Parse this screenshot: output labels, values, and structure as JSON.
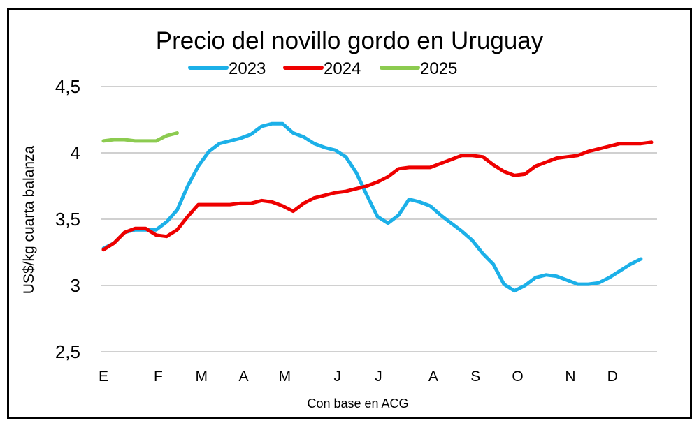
{
  "chart_data": {
    "type": "line",
    "title": "Precio del novillo gordo en Uruguay",
    "ylabel": "US$/kg cuarta balanza",
    "xlabel": "Con base en ACG",
    "ylim": [
      2.5,
      4.5
    ],
    "yticks": [
      "4,5",
      "4",
      "3,5",
      "3",
      "2,5"
    ],
    "ytick_values": [
      4.5,
      4,
      3.5,
      3,
      2.5
    ],
    "grid": true,
    "legend_position": "top",
    "x_unit": "week of year",
    "xlim": [
      0,
      52
    ],
    "xticks": [
      {
        "label": "E",
        "week": 0
      },
      {
        "label": "F",
        "week": 5.2
      },
      {
        "label": "M",
        "week": 9.3
      },
      {
        "label": "A",
        "week": 13.3
      },
      {
        "label": "M",
        "week": 17.2
      },
      {
        "label": "J",
        "week": 22.2
      },
      {
        "label": "J",
        "week": 26.1
      },
      {
        "label": "A",
        "week": 31.3
      },
      {
        "label": "S",
        "week": 35.3
      },
      {
        "label": "O",
        "week": 39.3
      },
      {
        "label": "N",
        "week": 44.3
      },
      {
        "label": "D",
        "week": 48.3
      }
    ],
    "series": [
      {
        "name": "2023",
        "color": "#1CB0E8",
        "values": [
          3.28,
          3.32,
          3.4,
          3.42,
          3.42,
          3.42,
          3.48,
          3.57,
          3.75,
          3.9,
          4.01,
          4.07,
          4.09,
          4.11,
          4.14,
          4.2,
          4.22,
          4.22,
          4.15,
          4.12,
          4.07,
          4.04,
          4.02,
          3.97,
          3.85,
          3.68,
          3.52,
          3.47,
          3.53,
          3.65,
          3.63,
          3.6,
          3.53,
          3.47,
          3.41,
          3.34,
          3.24,
          3.16,
          3.01,
          2.96,
          3.0,
          3.06,
          3.08,
          3.07,
          3.04,
          3.01,
          3.01,
          3.02,
          3.06,
          3.11,
          3.16,
          3.2
        ]
      },
      {
        "name": "2024",
        "color": "#EE0000",
        "values": [
          3.27,
          3.32,
          3.4,
          3.43,
          3.43,
          3.38,
          3.37,
          3.42,
          3.52,
          3.61,
          3.61,
          3.61,
          3.61,
          3.62,
          3.62,
          3.64,
          3.63,
          3.6,
          3.56,
          3.62,
          3.66,
          3.68,
          3.7,
          3.71,
          3.73,
          3.75,
          3.78,
          3.82,
          3.88,
          3.89,
          3.89,
          3.89,
          3.92,
          3.95,
          3.98,
          3.98,
          3.97,
          3.91,
          3.86,
          3.83,
          3.84,
          3.9,
          3.93,
          3.96,
          3.97,
          3.98,
          4.01,
          4.03,
          4.05,
          4.07,
          4.07,
          4.07,
          4.08
        ]
      },
      {
        "name": "2025",
        "color": "#8CCB50",
        "values": [
          4.09,
          4.1,
          4.1,
          4.09,
          4.09,
          4.09,
          4.13,
          4.15
        ]
      }
    ]
  }
}
